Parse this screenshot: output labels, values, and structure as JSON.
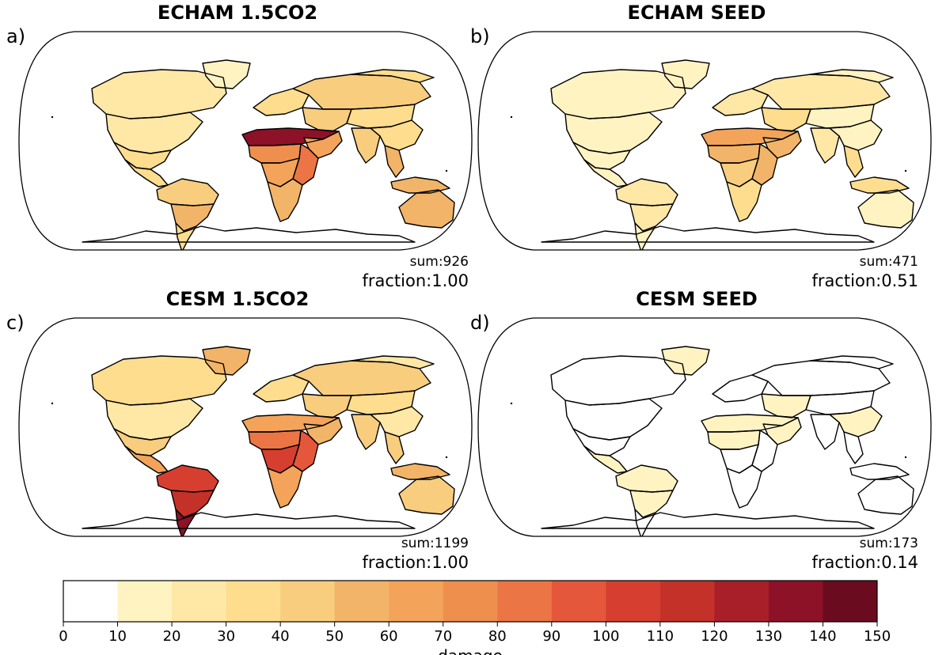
{
  "colors": {
    "c0": "#ffffff",
    "c1": "#fff3c2",
    "c2": "#ffe7a6",
    "c3": "#fedd8e",
    "c4": "#f8cd7e",
    "c5": "#f2b468",
    "c6": "#f3a45a",
    "c7": "#ee8f4e",
    "c8": "#eb7544",
    "c9": "#e5573a",
    "c10": "#d63f30",
    "c11": "#c43128",
    "c12": "#a81f2a",
    "c13": "#8d1227",
    "c14": "#6b0b1f"
  },
  "panels": [
    {
      "id": "a",
      "letter": "a)",
      "title": "ECHAM 1.5CO2",
      "sum": "sum:926",
      "fraction": "fraction:1.00",
      "regions": {
        "na_north": "c2",
        "na_mid": "c2",
        "na_south": "c3",
        "central_am": "c3",
        "sa_north": "c4",
        "sa_mid": "c5",
        "sa_south": "c3",
        "greenland": "c1",
        "europe": "c3",
        "russia": "c4",
        "siberia": "c3",
        "sahara": "c13",
        "sahel": "c7",
        "africa_mid": "c6",
        "east_africa": "c8",
        "africa_south": "c5",
        "arabia": "c6",
        "middle_east": "c4",
        "central_asia": "c3",
        "india": "c4",
        "china": "c3",
        "se_asia": "c5",
        "indonesia": "c5",
        "australia": "c5"
      }
    },
    {
      "id": "b",
      "letter": "b)",
      "title": "ECHAM SEED",
      "sum": "sum:471",
      "fraction": "fraction:0.51",
      "regions": {
        "na_north": "c1",
        "na_mid": "c1",
        "na_south": "c1",
        "central_am": "c1",
        "sa_north": "c2",
        "sa_mid": "c2",
        "sa_south": "c1",
        "greenland": "c1",
        "europe": "c2",
        "russia": "c2",
        "siberia": "c1",
        "sahara": "c6",
        "sahel": "c5",
        "africa_mid": "c4",
        "east_africa": "c5",
        "africa_south": "c3",
        "arabia": "c5",
        "middle_east": "c3",
        "central_asia": "c1",
        "india": "c2",
        "china": "c1",
        "se_asia": "c3",
        "indonesia": "c3",
        "australia": "c1"
      }
    },
    {
      "id": "c",
      "letter": "c)",
      "title": "CESM 1.5CO2",
      "sum": "sum:1199",
      "fraction": "fraction:1.00",
      "regions": {
        "na_north": "c3",
        "na_mid": "c2",
        "na_south": "c4",
        "central_am": "c6",
        "sa_north": "c10",
        "sa_mid": "c11",
        "sa_south": "c13",
        "greenland": "c5",
        "europe": "c3",
        "russia": "c4",
        "siberia": "c2",
        "sahara": "c6",
        "sahel": "c8",
        "africa_mid": "c10",
        "east_africa": "c9",
        "africa_south": "c6",
        "arabia": "c5",
        "middle_east": "c4",
        "central_asia": "c3",
        "india": "c4",
        "china": "c2",
        "se_asia": "c4",
        "indonesia": "c5",
        "australia": "c4"
      }
    },
    {
      "id": "d",
      "letter": "d)",
      "title": "CESM SEED",
      "sum": "sum:173",
      "fraction": "fraction:0.14",
      "regions": {
        "na_north": "c0",
        "na_mid": "c0",
        "na_south": "c0",
        "central_am": "c1",
        "sa_north": "c1",
        "sa_mid": "c1",
        "sa_south": "c0",
        "greenland": "c1",
        "europe": "c0",
        "russia": "c0",
        "siberia": "c0",
        "sahara": "c1",
        "sahel": "c1",
        "africa_mid": "c0",
        "east_africa": "c0",
        "africa_south": "c0",
        "arabia": "c1",
        "middle_east": "c1",
        "central_asia": "c0",
        "india": "c0",
        "china": "c1",
        "se_asia": "c0",
        "indonesia": "c0",
        "australia": "c0"
      }
    }
  ],
  "colorbar": {
    "label": "damage",
    "ticks": [
      "0",
      "10",
      "20",
      "30",
      "40",
      "50",
      "60",
      "70",
      "80",
      "90",
      "100",
      "110",
      "120",
      "130",
      "140",
      "150"
    ],
    "bins": [
      "c0",
      "c1",
      "c2",
      "c3",
      "c4",
      "c5",
      "c6",
      "c7",
      "c8",
      "c9",
      "c10",
      "c11",
      "c12",
      "c13",
      "c14"
    ]
  }
}
